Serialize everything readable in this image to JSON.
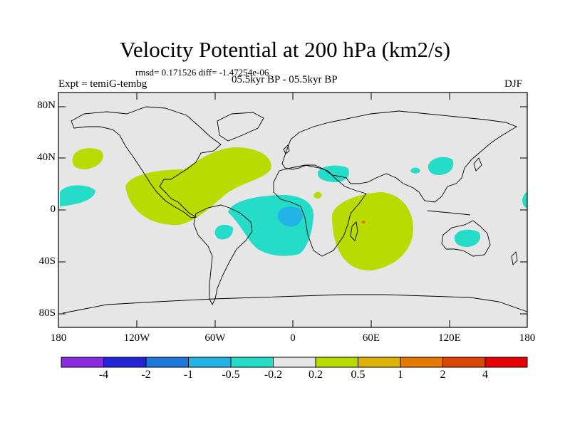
{
  "title": "Velocity Potential at 200 hPa (km2/s)",
  "stats": "rmsd= 0.171526 diff= -1.47254e-06",
  "left_label": "Expt = temiG-tembg",
  "center_label": "05.5kyr BP - 05.5kyr BP",
  "right_label": "DJF",
  "y_ticks": [
    "80N",
    "40N",
    "0",
    "40S",
    "80S"
  ],
  "x_ticks": [
    "180",
    "120W",
    "60W",
    "0",
    "60E",
    "120E",
    "180"
  ],
  "colorbar": {
    "labels": [
      "-4",
      "-2",
      "-1",
      "-0.5",
      "-0.2",
      "0.2",
      "0.5",
      "1",
      "2",
      "4"
    ],
    "colors": [
      "#8a2be2",
      "#2424d8",
      "#1e78dc",
      "#22b4e6",
      "#24dcc8",
      "#e6e6e6",
      "#b8dc00",
      "#dcb400",
      "#e67800",
      "#dc4600",
      "#e60000"
    ]
  },
  "colors": {
    "ocean": "#e6e6e6",
    "positive_anomaly": "#b8dc00",
    "negative_weak": "#24dcc8",
    "negative_moderate": "#22b4e6",
    "positive_strong": "#e67800"
  }
}
